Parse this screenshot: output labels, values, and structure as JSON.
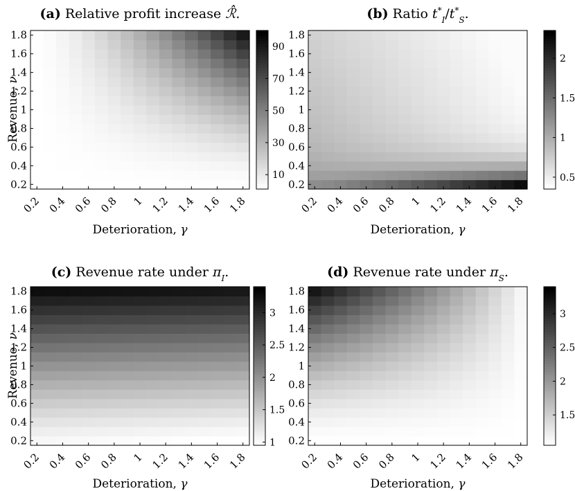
{
  "chart_data": [
    {
      "type": "heatmap",
      "panel_label": "(a)",
      "title": "Relative profit increase ℛ̂.",
      "xlabel": "Deterioration, γ",
      "ylabel": "Revenue, ν",
      "x_ticks": [
        "0.2",
        "0.4",
        "0.6",
        "0.8",
        "1",
        "1.2",
        "1.4",
        "1.6",
        "1.8"
      ],
      "y_ticks": [
        "0.2",
        "0.4",
        "0.6",
        "0.8",
        "1",
        "1.2",
        "1.4",
        "1.6",
        "1.8"
      ],
      "x_range": [
        0.15,
        1.85
      ],
      "y_range": [
        0.15,
        1.85
      ],
      "grid_step": 0.1,
      "colorscale": "white-to-black",
      "colorbar_range": [
        1,
        100
      ],
      "colorbar_ticks": [
        "10",
        "30",
        "50",
        "70",
        "90"
      ],
      "colorbar_tick_values": [
        10,
        30,
        50,
        70,
        90
      ],
      "grid": false
    },
    {
      "type": "heatmap",
      "panel_label": "(b)",
      "title": "Ratio t*I/t*S.",
      "xlabel": "Deterioration, γ",
      "ylabel": "",
      "x_ticks": [
        "0.2",
        "0.4",
        "0.6",
        "0.8",
        "1",
        "1.2",
        "1.4",
        "1.6",
        "1.8"
      ],
      "y_ticks": [
        "0.2",
        "0.4",
        "0.6",
        "0.8",
        "1",
        "1.2",
        "1.4",
        "1.6",
        "1.8"
      ],
      "x_range": [
        0.15,
        1.85
      ],
      "y_range": [
        0.15,
        1.85
      ],
      "grid_step": 0.1,
      "colorscale": "white-to-black",
      "colorbar_range": [
        0.35,
        2.35
      ],
      "colorbar_ticks": [
        "0.5",
        "1",
        "1.5",
        "2"
      ],
      "colorbar_tick_values": [
        0.5,
        1,
        1.5,
        2
      ],
      "grid": false
    },
    {
      "type": "heatmap",
      "panel_label": "(c)",
      "title": "Revenue rate under πI.",
      "xlabel": "Deterioration, γ",
      "ylabel": "Revenue, ν",
      "x_ticks": [
        "0.2",
        "0.4",
        "0.6",
        "0.8",
        "1",
        "1.2",
        "1.4",
        "1.6",
        "1.8"
      ],
      "y_ticks": [
        "0.2",
        "0.4",
        "0.6",
        "0.8",
        "1",
        "1.2",
        "1.4",
        "1.6",
        "1.8"
      ],
      "x_range": [
        0.15,
        1.85
      ],
      "y_range": [
        0.15,
        1.85
      ],
      "grid_step": 0.1,
      "colorscale": "white-to-black",
      "colorbar_range": [
        0.95,
        3.4
      ],
      "colorbar_ticks": [
        "1",
        "1.5",
        "2",
        "2.5",
        "3"
      ],
      "colorbar_tick_values": [
        1,
        1.5,
        2,
        2.5,
        3
      ],
      "grid": false
    },
    {
      "type": "heatmap",
      "panel_label": "(d)",
      "title": "Revenue rate under πS.",
      "xlabel": "Deterioration, γ",
      "ylabel": "",
      "x_ticks": [
        "0.2",
        "0.4",
        "0.6",
        "0.8",
        "1",
        "1.2",
        "1.4",
        "1.6",
        "1.8"
      ],
      "y_ticks": [
        "0.2",
        "0.4",
        "0.6",
        "0.8",
        "1",
        "1.2",
        "1.4",
        "1.6",
        "1.8"
      ],
      "x_range": [
        0.15,
        1.85
      ],
      "y_range": [
        0.15,
        1.85
      ],
      "grid_step": 0.1,
      "colorscale": "white-to-black",
      "colorbar_range": [
        1.05,
        3.4
      ],
      "colorbar_ticks": [
        "1.5",
        "2",
        "2.5",
        "3"
      ],
      "colorbar_tick_values": [
        1.5,
        2,
        2.5,
        3
      ],
      "grid": false
    }
  ]
}
